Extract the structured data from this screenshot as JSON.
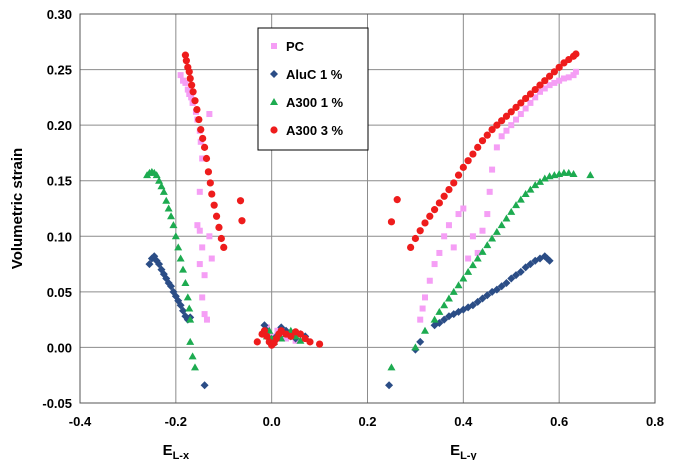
{
  "chart_data": {
    "type": "scatter",
    "title": "",
    "ylabel": "Volumetric strain",
    "xlim": [
      -0.4,
      0.8
    ],
    "ylim": [
      -0.05,
      0.3
    ],
    "xticks": [
      "-0.4",
      "-0.2",
      "0.0",
      "0.2",
      "0.4",
      "0.6",
      "0.8"
    ],
    "yticks": [
      "-0.05",
      "0.00",
      "0.05",
      "0.10",
      "0.15",
      "0.20",
      "0.25",
      "0.30"
    ],
    "grid": true,
    "legend_position": "top-center",
    "xlabels": [
      {
        "text": "E",
        "sub": "L-x",
        "at": -0.2
      },
      {
        "text": "E",
        "sub": "L-y",
        "at": 0.4
      }
    ],
    "series": [
      {
        "name": "PC",
        "marker": "square",
        "color": "#f59ef5",
        "points": [
          [
            -0.19,
            0.245
          ],
          [
            -0.185,
            0.24
          ],
          [
            -0.18,
            0.238
          ],
          [
            -0.175,
            0.232
          ],
          [
            -0.172,
            0.228
          ],
          [
            -0.168,
            0.225
          ],
          [
            -0.165,
            0.22
          ],
          [
            -0.158,
            0.212
          ],
          [
            -0.155,
            0.205
          ],
          [
            -0.15,
            0.195
          ],
          [
            -0.148,
            0.185
          ],
          [
            -0.145,
            0.17
          ],
          [
            -0.15,
            0.14
          ],
          [
            -0.155,
            0.11
          ],
          [
            -0.15,
            0.105
          ],
          [
            -0.145,
            0.09
          ],
          [
            -0.15,
            0.075
          ],
          [
            -0.14,
            0.065
          ],
          [
            -0.145,
            0.045
          ],
          [
            -0.14,
            0.03
          ],
          [
            -0.135,
            0.025
          ],
          [
            -0.13,
            0.21
          ],
          [
            -0.13,
            0.1
          ],
          [
            -0.125,
            0.08
          ],
          [
            -0.015,
            0.012
          ],
          [
            -0.01,
            0.018
          ],
          [
            -0.005,
            0.01
          ],
          [
            0.0,
            0.005
          ],
          [
            0.005,
            0.01
          ],
          [
            0.012,
            0.015
          ],
          [
            0.02,
            0.012
          ],
          [
            0.03,
            0.008
          ],
          [
            0.04,
            0.01
          ],
          [
            0.05,
            0.006
          ],
          [
            0.31,
            0.025
          ],
          [
            0.315,
            0.035
          ],
          [
            0.32,
            0.045
          ],
          [
            0.33,
            0.06
          ],
          [
            0.34,
            0.075
          ],
          [
            0.35,
            0.085
          ],
          [
            0.36,
            0.1
          ],
          [
            0.37,
            0.11
          ],
          [
            0.38,
            0.09
          ],
          [
            0.39,
            0.12
          ],
          [
            0.4,
            0.125
          ],
          [
            0.41,
            0.08
          ],
          [
            0.42,
            0.1
          ],
          [
            0.43,
            0.085
          ],
          [
            0.44,
            0.105
          ],
          [
            0.45,
            0.12
          ],
          [
            0.455,
            0.14
          ],
          [
            0.46,
            0.16
          ],
          [
            0.47,
            0.18
          ],
          [
            0.48,
            0.19
          ],
          [
            0.49,
            0.195
          ],
          [
            0.5,
            0.2
          ],
          [
            0.51,
            0.205
          ],
          [
            0.52,
            0.21
          ],
          [
            0.53,
            0.215
          ],
          [
            0.54,
            0.22
          ],
          [
            0.55,
            0.225
          ],
          [
            0.56,
            0.23
          ],
          [
            0.57,
            0.233
          ],
          [
            0.58,
            0.236
          ],
          [
            0.59,
            0.238
          ],
          [
            0.6,
            0.24
          ],
          [
            0.61,
            0.242
          ],
          [
            0.62,
            0.243
          ],
          [
            0.63,
            0.245
          ],
          [
            0.635,
            0.248
          ]
        ]
      },
      {
        "name": "AluC 1 %",
        "marker": "diamond",
        "color": "#2b4d86",
        "points": [
          [
            -0.255,
            0.075
          ],
          [
            -0.25,
            0.08
          ],
          [
            -0.245,
            0.082
          ],
          [
            -0.24,
            0.078
          ],
          [
            -0.235,
            0.075
          ],
          [
            -0.23,
            0.07
          ],
          [
            -0.225,
            0.066
          ],
          [
            -0.22,
            0.062
          ],
          [
            -0.215,
            0.058
          ],
          [
            -0.21,
            0.055
          ],
          [
            -0.205,
            0.05
          ],
          [
            -0.2,
            0.046
          ],
          [
            -0.195,
            0.042
          ],
          [
            -0.19,
            0.038
          ],
          [
            -0.185,
            0.033
          ],
          [
            -0.18,
            0.028
          ],
          [
            -0.175,
            0.025
          ],
          [
            -0.17,
            0.027
          ],
          [
            -0.14,
            -0.034
          ],
          [
            -0.015,
            0.02
          ],
          [
            -0.01,
            0.015
          ],
          [
            -0.005,
            0.008
          ],
          [
            0.0,
            0.003
          ],
          [
            0.005,
            0.005
          ],
          [
            0.01,
            0.01
          ],
          [
            0.015,
            0.012
          ],
          [
            0.02,
            0.018
          ],
          [
            0.03,
            0.015
          ],
          [
            0.04,
            0.01
          ],
          [
            0.05,
            0.008
          ],
          [
            0.06,
            0.012
          ],
          [
            0.07,
            0.01
          ],
          [
            0.245,
            -0.034
          ],
          [
            0.3,
            -0.002
          ],
          [
            0.31,
            0.005
          ],
          [
            0.34,
            0.02
          ],
          [
            0.35,
            0.022
          ],
          [
            0.36,
            0.025
          ],
          [
            0.37,
            0.028
          ],
          [
            0.38,
            0.03
          ],
          [
            0.39,
            0.032
          ],
          [
            0.4,
            0.034
          ],
          [
            0.41,
            0.036
          ],
          [
            0.42,
            0.038
          ],
          [
            0.43,
            0.041
          ],
          [
            0.44,
            0.044
          ],
          [
            0.45,
            0.047
          ],
          [
            0.46,
            0.05
          ],
          [
            0.47,
            0.052
          ],
          [
            0.48,
            0.055
          ],
          [
            0.49,
            0.058
          ],
          [
            0.5,
            0.062
          ],
          [
            0.51,
            0.065
          ],
          [
            0.52,
            0.068
          ],
          [
            0.53,
            0.072
          ],
          [
            0.54,
            0.075
          ],
          [
            0.55,
            0.078
          ],
          [
            0.56,
            0.08
          ],
          [
            0.57,
            0.082
          ],
          [
            0.575,
            0.08
          ],
          [
            0.58,
            0.078
          ]
        ]
      },
      {
        "name": "A300 1 %",
        "marker": "triangle",
        "color": "#1dab50",
        "points": [
          [
            -0.26,
            0.155
          ],
          [
            -0.255,
            0.157
          ],
          [
            -0.25,
            0.158
          ],
          [
            -0.245,
            0.157
          ],
          [
            -0.24,
            0.155
          ],
          [
            -0.235,
            0.15
          ],
          [
            -0.23,
            0.145
          ],
          [
            -0.225,
            0.14
          ],
          [
            -0.22,
            0.132
          ],
          [
            -0.215,
            0.125
          ],
          [
            -0.21,
            0.118
          ],
          [
            -0.205,
            0.11
          ],
          [
            -0.2,
            0.1
          ],
          [
            -0.195,
            0.09
          ],
          [
            -0.19,
            0.08
          ],
          [
            -0.185,
            0.07
          ],
          [
            -0.18,
            0.058
          ],
          [
            -0.175,
            0.045
          ],
          [
            -0.172,
            0.035
          ],
          [
            -0.17,
            0.025
          ],
          [
            -0.17,
            0.005
          ],
          [
            -0.165,
            -0.008
          ],
          [
            -0.16,
            -0.018
          ],
          [
            -0.01,
            0.01
          ],
          [
            -0.005,
            0.015
          ],
          [
            0.0,
            0.008
          ],
          [
            0.005,
            0.005
          ],
          [
            0.01,
            0.01
          ],
          [
            0.015,
            0.012
          ],
          [
            0.02,
            0.008
          ],
          [
            0.03,
            0.012
          ],
          [
            0.04,
            0.015
          ],
          [
            0.05,
            0.01
          ],
          [
            0.06,
            0.006
          ],
          [
            0.25,
            -0.018
          ],
          [
            0.3,
            0.0
          ],
          [
            0.32,
            0.015
          ],
          [
            0.34,
            0.025
          ],
          [
            0.35,
            0.032
          ],
          [
            0.36,
            0.038
          ],
          [
            0.37,
            0.044
          ],
          [
            0.38,
            0.05
          ],
          [
            0.39,
            0.056
          ],
          [
            0.4,
            0.062
          ],
          [
            0.41,
            0.068
          ],
          [
            0.42,
            0.074
          ],
          [
            0.43,
            0.08
          ],
          [
            0.44,
            0.086
          ],
          [
            0.45,
            0.092
          ],
          [
            0.46,
            0.098
          ],
          [
            0.47,
            0.104
          ],
          [
            0.48,
            0.11
          ],
          [
            0.49,
            0.116
          ],
          [
            0.5,
            0.122
          ],
          [
            0.51,
            0.128
          ],
          [
            0.52,
            0.133
          ],
          [
            0.53,
            0.138
          ],
          [
            0.54,
            0.142
          ],
          [
            0.55,
            0.146
          ],
          [
            0.56,
            0.149
          ],
          [
            0.57,
            0.152
          ],
          [
            0.58,
            0.154
          ],
          [
            0.59,
            0.155
          ],
          [
            0.6,
            0.156
          ],
          [
            0.61,
            0.157
          ],
          [
            0.62,
            0.157
          ],
          [
            0.63,
            0.156
          ],
          [
            0.665,
            0.155
          ]
        ]
      },
      {
        "name": "A300 3 %",
        "marker": "circle",
        "color": "#ee1c1c",
        "points": [
          [
            -0.18,
            0.263
          ],
          [
            -0.178,
            0.258
          ],
          [
            -0.175,
            0.252
          ],
          [
            -0.172,
            0.248
          ],
          [
            -0.17,
            0.242
          ],
          [
            -0.167,
            0.236
          ],
          [
            -0.164,
            0.23
          ],
          [
            -0.16,
            0.222
          ],
          [
            -0.156,
            0.214
          ],
          [
            -0.152,
            0.205
          ],
          [
            -0.148,
            0.196
          ],
          [
            -0.144,
            0.188
          ],
          [
            -0.14,
            0.18
          ],
          [
            -0.136,
            0.17
          ],
          [
            -0.132,
            0.158
          ],
          [
            -0.128,
            0.148
          ],
          [
            -0.125,
            0.138
          ],
          [
            -0.12,
            0.128
          ],
          [
            -0.115,
            0.118
          ],
          [
            -0.11,
            0.108
          ],
          [
            -0.105,
            0.098
          ],
          [
            -0.1,
            0.09
          ],
          [
            -0.065,
            0.132
          ],
          [
            -0.062,
            0.114
          ],
          [
            -0.03,
            0.005
          ],
          [
            -0.02,
            0.012
          ],
          [
            -0.015,
            0.015
          ],
          [
            -0.01,
            0.01
          ],
          [
            -0.005,
            0.005
          ],
          [
            0.0,
            0.002
          ],
          [
            0.005,
            0.004
          ],
          [
            0.01,
            0.008
          ],
          [
            0.015,
            0.012
          ],
          [
            0.02,
            0.015
          ],
          [
            0.03,
            0.012
          ],
          [
            0.04,
            0.01
          ],
          [
            0.05,
            0.014
          ],
          [
            0.06,
            0.012
          ],
          [
            0.07,
            0.008
          ],
          [
            0.08,
            0.005
          ],
          [
            0.1,
            0.003
          ],
          [
            0.25,
            0.113
          ],
          [
            0.262,
            0.133
          ],
          [
            0.29,
            0.09
          ],
          [
            0.3,
            0.098
          ],
          [
            0.31,
            0.105
          ],
          [
            0.32,
            0.112
          ],
          [
            0.33,
            0.118
          ],
          [
            0.34,
            0.124
          ],
          [
            0.35,
            0.13
          ],
          [
            0.36,
            0.136
          ],
          [
            0.37,
            0.142
          ],
          [
            0.38,
            0.148
          ],
          [
            0.39,
            0.155
          ],
          [
            0.4,
            0.162
          ],
          [
            0.41,
            0.168
          ],
          [
            0.42,
            0.174
          ],
          [
            0.43,
            0.18
          ],
          [
            0.44,
            0.186
          ],
          [
            0.45,
            0.191
          ],
          [
            0.46,
            0.196
          ],
          [
            0.47,
            0.2
          ],
          [
            0.48,
            0.204
          ],
          [
            0.49,
            0.208
          ],
          [
            0.5,
            0.212
          ],
          [
            0.51,
            0.216
          ],
          [
            0.52,
            0.22
          ],
          [
            0.53,
            0.224
          ],
          [
            0.54,
            0.228
          ],
          [
            0.55,
            0.232
          ],
          [
            0.56,
            0.236
          ],
          [
            0.57,
            0.24
          ],
          [
            0.58,
            0.244
          ],
          [
            0.59,
            0.248
          ],
          [
            0.6,
            0.252
          ],
          [
            0.61,
            0.256
          ],
          [
            0.62,
            0.259
          ],
          [
            0.63,
            0.262
          ],
          [
            0.635,
            0.264
          ]
        ]
      }
    ]
  }
}
